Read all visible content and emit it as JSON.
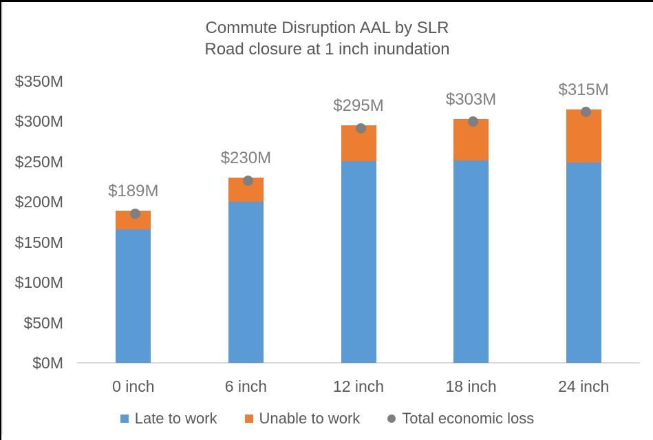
{
  "chart_data": {
    "type": "bar",
    "stacked": true,
    "title": "Commute Disruption AAL by SLR",
    "subtitle": "Road closure at 1 inch inundation",
    "categories": [
      "0 inch",
      "6 inch",
      "12 inch",
      "18 inch",
      "24 inch"
    ],
    "series": [
      {
        "name": "Late to work",
        "type": "bar",
        "marker": "square",
        "color": "#5B9BD5",
        "values": [
          166,
          200,
          251,
          252,
          249
        ]
      },
      {
        "name": "Unable to work",
        "type": "bar",
        "marker": "square",
        "color": "#ED7D31",
        "values": [
          23,
          30,
          44,
          51,
          66
        ]
      },
      {
        "name": "Total economic loss",
        "type": "scatter",
        "marker": "circle",
        "color": "#7F7F7F",
        "values": [
          189,
          230,
          295,
          303,
          315
        ]
      }
    ],
    "total_labels": [
      "$189M",
      "$230M",
      "$295M",
      "$303M",
      "$315M"
    ],
    "y_ticks": [
      "$0M",
      "$50M",
      "$100M",
      "$150M",
      "$200M",
      "$250M",
      "$300M",
      "$350M"
    ],
    "y_tick_values": [
      0,
      50,
      100,
      150,
      200,
      250,
      300,
      350
    ],
    "ylim": [
      0,
      350
    ],
    "xlabel": "",
    "ylabel": "",
    "grid": false,
    "legend_position": "bottom"
  },
  "colors": {
    "late_to_work": "#5B9BD5",
    "unable_to_work": "#ED7D31",
    "total_marker": "#7F7F7F",
    "axis_line": "#D9D9D9",
    "text": "#595959",
    "data_label_text": "#7F7F7F"
  }
}
